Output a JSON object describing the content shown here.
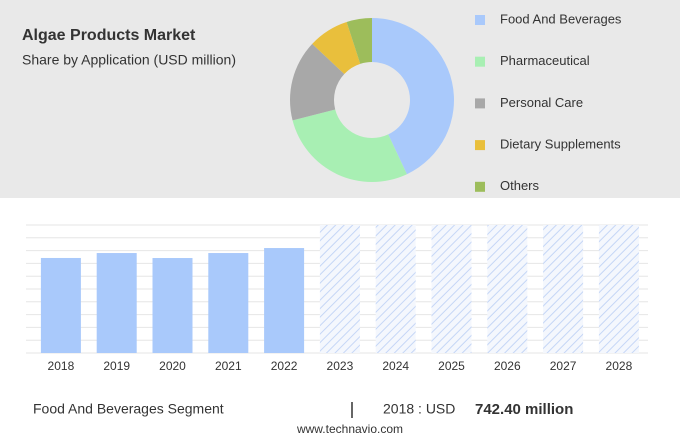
{
  "chart_data": [
    {
      "type": "pie",
      "donut": true,
      "title": "Algae Products Market",
      "subtitle": "Share by Application (USD million)",
      "categories": [
        "Food And Beverages",
        "Pharmaceutical",
        "Personal Care",
        "Dietary Supplements",
        "Others"
      ],
      "values": [
        43,
        28,
        16,
        8,
        5
      ],
      "colors": [
        "#a9c9fb",
        "#a8efb3",
        "#a8a8a8",
        "#e9bf3c",
        "#9dbd5b"
      ]
    },
    {
      "type": "bar",
      "categories": [
        "2018",
        "2019",
        "2020",
        "2021",
        "2022",
        "2023",
        "2024",
        "2025",
        "2026",
        "2027",
        "2028"
      ],
      "values": [
        742.4,
        781,
        742,
        781,
        820,
        null,
        null,
        null,
        null,
        null,
        null
      ],
      "color": "#a9c9fb",
      "ylim": [
        0,
        1000
      ],
      "grid": true
    }
  ],
  "footer": {
    "segment": "Food And Beverages Segment",
    "year_text": "2018 : USD",
    "value_text": "742.40 million",
    "source": "www.technavio.com"
  }
}
